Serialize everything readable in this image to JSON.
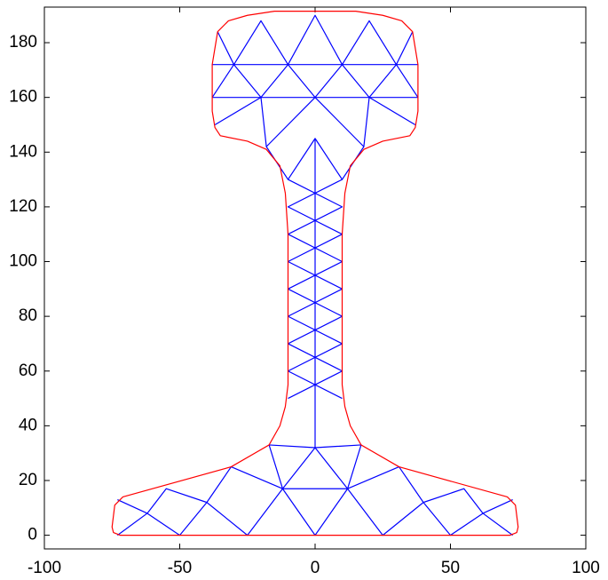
{
  "chart_data": {
    "type": "line",
    "xlim": [
      -100,
      100
    ],
    "ylim": [
      -5,
      193
    ],
    "xticks": [
      -100,
      -50,
      0,
      50,
      100
    ],
    "yticks": [
      0,
      20,
      40,
      60,
      80,
      100,
      120,
      140,
      160,
      180
    ],
    "series": [
      {
        "color": "#0000ff",
        "x": [
          -10,
          10,
          -10,
          10,
          -10,
          10,
          -10,
          10,
          -10,
          null,
          10,
          -10,
          10,
          -10,
          10,
          -10,
          10,
          -10,
          10,
          null,
          0,
          0,
          null,
          -73,
          -62,
          -50,
          -40,
          -25,
          -12,
          0,
          12,
          25,
          40,
          50,
          62,
          73,
          null,
          -73,
          -62,
          -55,
          -40,
          -31,
          -12,
          -17,
          0,
          17,
          12,
          31,
          40,
          55,
          62,
          73,
          null,
          -12,
          12,
          null,
          -12,
          0,
          12,
          null,
          -38,
          -30,
          -20,
          -10,
          0,
          10,
          20,
          30,
          38,
          null,
          -36,
          -30,
          -20,
          -10,
          0,
          10,
          20,
          30,
          36,
          null,
          -37,
          -20,
          -18,
          0,
          18,
          20,
          37,
          null,
          -10,
          -18,
          -10,
          0,
          10,
          18,
          10,
          null,
          -38,
          38,
          null,
          -38,
          38
        ],
        "y": [
          50,
          60,
          70,
          80,
          90,
          100,
          110,
          120,
          130,
          null,
          50,
          60,
          70,
          80,
          90,
          100,
          110,
          120,
          130,
          null,
          32,
          145,
          null,
          0,
          8,
          0,
          12,
          0,
          17,
          0,
          17,
          0,
          12,
          0,
          8,
          0,
          null,
          13,
          8,
          17,
          12,
          25,
          17,
          33,
          32,
          33,
          17,
          25,
          12,
          17,
          8,
          13,
          null,
          17,
          17,
          null,
          17,
          32,
          17,
          null,
          160,
          172,
          160,
          172,
          160,
          172,
          160,
          172,
          160,
          null,
          184,
          172,
          188,
          172,
          190,
          172,
          188,
          172,
          184,
          null,
          150,
          160,
          142,
          160,
          142,
          160,
          150,
          null,
          130,
          142,
          130,
          145,
          130,
          142,
          130,
          null,
          160,
          160,
          null,
          172,
          172
        ]
      },
      {
        "color": "#ff0000",
        "x": [
          0,
          72,
          74.5,
          75,
          74,
          71,
          31,
          17,
          13,
          11,
          10,
          10,
          11,
          13,
          18,
          25,
          35,
          37,
          38,
          38,
          36,
          32,
          25,
          15,
          0,
          -15,
          -25,
          -32,
          -36,
          -38,
          -38,
          -37,
          -35,
          -25,
          -18,
          -13,
          -11,
          -10,
          -10,
          -11,
          -13,
          -17,
          -31,
          -71,
          -74,
          -75,
          -74.5,
          -72,
          0
        ],
        "y": [
          0,
          0,
          1,
          3,
          11,
          14,
          25,
          33,
          40,
          47,
          55,
          110,
          125,
          135,
          141,
          144,
          146,
          149,
          155,
          172,
          184,
          188,
          190,
          191.5,
          191.5,
          191.5,
          190,
          188,
          184,
          172,
          155,
          149,
          146,
          144,
          141,
          135,
          125,
          110,
          55,
          47,
          40,
          33,
          25,
          14,
          11,
          3,
          1,
          0,
          0
        ]
      }
    ]
  }
}
